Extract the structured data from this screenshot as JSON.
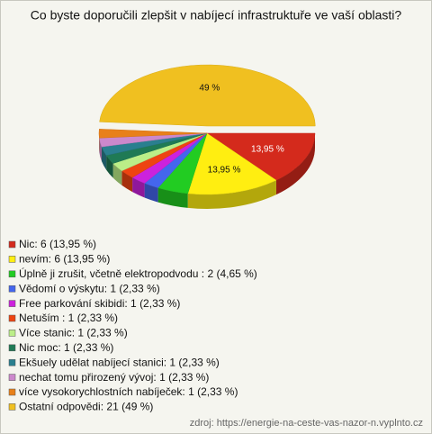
{
  "chart_data": {
    "type": "pie",
    "title": "Co byste doporučili zlepšit v nabíjecí infrastruktuře ve vaší oblasti?",
    "categories": [
      "Nic: 6 (13,95 %)",
      "nevím: 6 (13,95 %)",
      "Úplně ji zrušit, včetně elektropodvodu : 2 (4,65 %)",
      "Vědomí o výskytu: 1 (2,33 %)",
      "Free parkování skibidi: 1 (2,33 %)",
      "Netuším : 1 (2,33 %)",
      "Více stanic: 1 (2,33 %)",
      "Nic moc: 1 (2,33 %)",
      "Ekšuely udělat nabíjecí stanici: 1 (2,33 %)",
      "nechat tomu přirozený vývoj: 1 (2,33 %)",
      "více vysokorychlostních nabíječek: 1 (2,33 %)",
      "Ostatní odpovědi: 21 (49 %)"
    ],
    "values": [
      13.95,
      13.95,
      4.65,
      2.33,
      2.33,
      2.33,
      2.33,
      2.33,
      2.33,
      2.33,
      2.33,
      49
    ],
    "value_labels": [
      "13,95 %",
      "13,95 %",
      null,
      null,
      null,
      null,
      null,
      null,
      null,
      null,
      null,
      "49 %"
    ],
    "colors": [
      "#d42a1c",
      "#ffee11",
      "#22cc22",
      "#4466ee",
      "#cc22dd",
      "#ee4411",
      "#bbee88",
      "#1f7a55",
      "#2a7f8f",
      "#cc88cc",
      "#e8801a",
      "#f0c020"
    ],
    "source": "zdroj: https://energie-na-ceste-vas-nazor-n.vyplnto.cz"
  }
}
